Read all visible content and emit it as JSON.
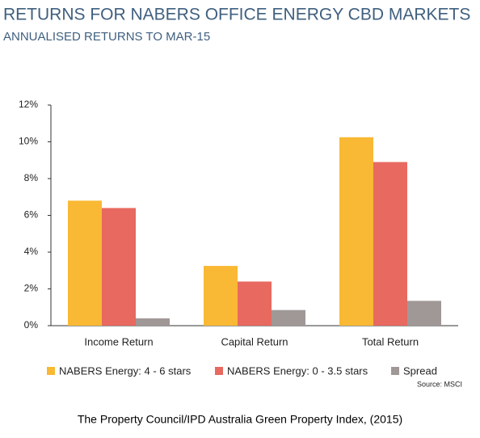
{
  "chart_data": {
    "type": "bar",
    "title": "RETURNS FOR NABERS OFFICE ENERGY CBD MARKETS",
    "subtitle": "ANNUALISED RETURNS TO MAR-15",
    "categories": [
      "Income Return",
      "Capital Return",
      "Total Return"
    ],
    "series": [
      {
        "name": "NABERS Energy: 4 - 6 stars",
        "color": "#f9b934",
        "values": [
          6.8,
          3.25,
          10.25
        ]
      },
      {
        "name": "NABERS Energy: 0 - 3.5 stars",
        "color": "#e8695f",
        "values": [
          6.4,
          2.4,
          8.9
        ]
      },
      {
        "name": "Spread",
        "color": "#a09897",
        "values": [
          0.4,
          0.85,
          1.35
        ]
      }
    ],
    "ylim": [
      0,
      12
    ],
    "yticks": [
      {
        "value": 0,
        "label": "0%"
      },
      {
        "value": 2,
        "label": "2%"
      },
      {
        "value": 4,
        "label": "4%"
      },
      {
        "value": 6,
        "label": "6%"
      },
      {
        "value": 8,
        "label": "8%"
      },
      {
        "value": 10,
        "label": "10%"
      },
      {
        "value": 12,
        "label": "12%"
      }
    ],
    "grid": false,
    "source": "Source: MSCI",
    "caption": "The Property Council/IPD Australia Green Property Index, (2015)"
  }
}
